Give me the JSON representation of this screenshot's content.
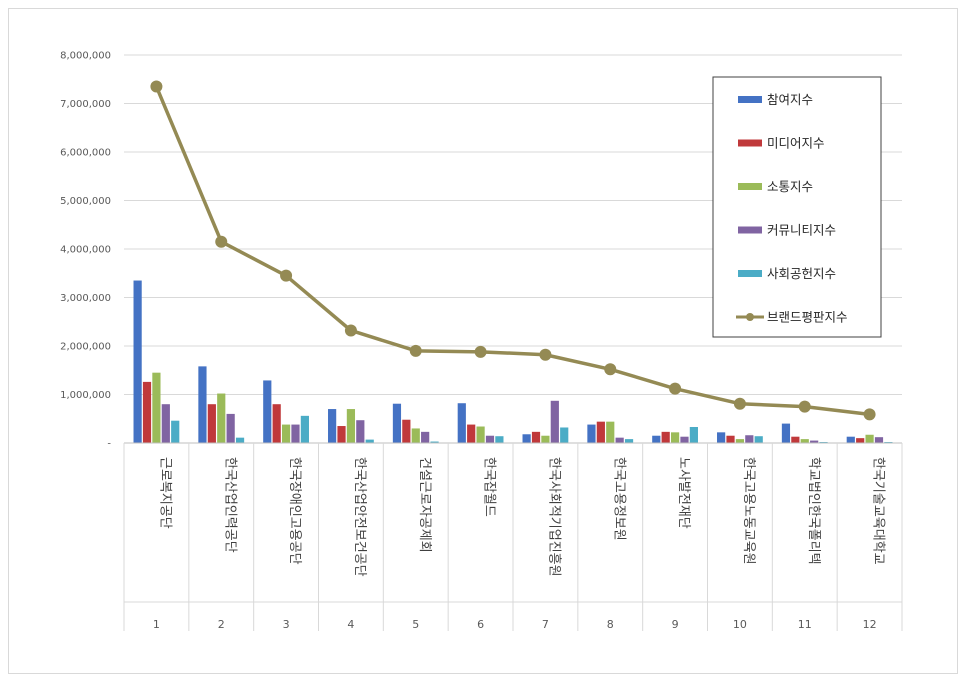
{
  "chart_data": {
    "type": "bar",
    "title": "",
    "xlabel": "",
    "ylabel": "",
    "ylim": [
      0,
      8000000
    ],
    "yticks": [
      "-",
      "1,000,000",
      "2,000,000",
      "3,000,000",
      "4,000,000",
      "5,000,000",
      "6,000,000",
      "7,000,000",
      "8,000,000"
    ],
    "ytick_values": [
      0,
      1000000,
      2000000,
      3000000,
      4000000,
      5000000,
      6000000,
      7000000,
      8000000
    ],
    "grid": true,
    "legend_position": "top-right",
    "numbers": [
      "1",
      "2",
      "3",
      "4",
      "5",
      "6",
      "7",
      "8",
      "9",
      "10",
      "11",
      "12"
    ],
    "categories": [
      "근로복지공단",
      "한국산업인력공단",
      "한국장애인고용공단",
      "한국산업안전보건공단",
      "건설근로자공제회",
      "한국잡월드",
      "한국사회적기업진흥원",
      "한국고용정보원",
      "노사발전재단",
      "한국고용노동교육원",
      "학교법인한국폴리텍",
      "한국기술교육대학교"
    ],
    "series": [
      {
        "name": "참여지수",
        "kind": "bar",
        "color": "#4472c4",
        "values": [
          3350000,
          1580000,
          1290000,
          700000,
          810000,
          820000,
          180000,
          380000,
          150000,
          220000,
          400000,
          130000
        ]
      },
      {
        "name": "미디어지수",
        "kind": "bar",
        "color": "#c0393b",
        "values": [
          1260000,
          800000,
          800000,
          350000,
          480000,
          380000,
          230000,
          440000,
          230000,
          150000,
          130000,
          100000
        ]
      },
      {
        "name": "소통지수",
        "kind": "bar",
        "color": "#9bbb59",
        "values": [
          1450000,
          1020000,
          380000,
          700000,
          300000,
          340000,
          150000,
          440000,
          220000,
          80000,
          80000,
          170000
        ]
      },
      {
        "name": "커뮤니티지수",
        "kind": "bar",
        "color": "#8064a2",
        "values": [
          800000,
          600000,
          380000,
          470000,
          230000,
          150000,
          870000,
          110000,
          130000,
          160000,
          50000,
          120000
        ]
      },
      {
        "name": "사회공헌지수",
        "kind": "bar",
        "color": "#4bacc6",
        "values": [
          460000,
          110000,
          560000,
          70000,
          30000,
          140000,
          320000,
          80000,
          330000,
          140000,
          20000,
          20000
        ]
      },
      {
        "name": "브랜드평판지수",
        "kind": "line",
        "color": "#948a54",
        "values": [
          7350000,
          4150000,
          3450000,
          2320000,
          1900000,
          1880000,
          1820000,
          1520000,
          1120000,
          810000,
          750000,
          590000
        ]
      }
    ]
  }
}
